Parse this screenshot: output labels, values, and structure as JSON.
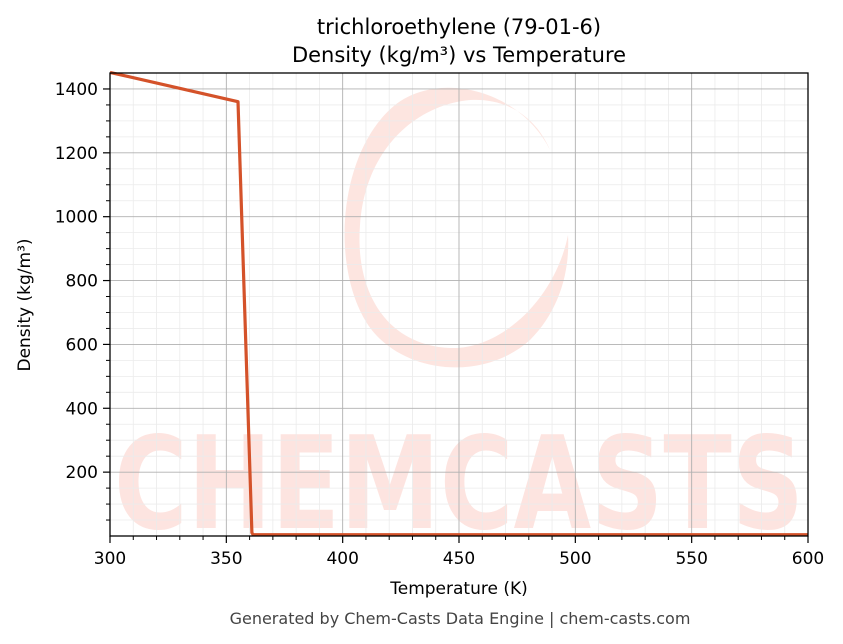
{
  "chart_data": {
    "type": "line",
    "title_line1": "trichloroethylene (79-01-6)",
    "title_line2": "Density (kg/m³) vs Temperature",
    "xlabel": "Temperature (K)",
    "ylabel": "Density (kg/m³)",
    "xlim": [
      300,
      600
    ],
    "ylim": [
      0,
      1450
    ],
    "x_ticks": [
      300,
      350,
      400,
      450,
      500,
      550,
      600
    ],
    "y_ticks": [
      200,
      400,
      600,
      800,
      1000,
      1200,
      1400
    ],
    "grid": true,
    "series": [
      {
        "color": "#d4522a",
        "x": [
          300,
          355,
          361,
          361.5,
          600
        ],
        "y": [
          1452,
          1360,
          10,
          4,
          4
        ]
      }
    ]
  },
  "watermark": {
    "text": "CHEMCASTS",
    "color": "#fde0db"
  },
  "footer": {
    "text": "Generated by Chem-Casts Data Engine | chem-casts.com"
  }
}
